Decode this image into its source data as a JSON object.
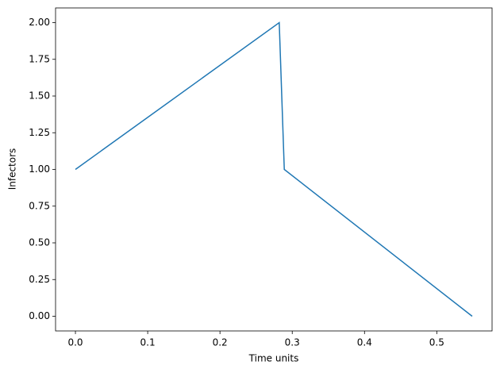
{
  "chart_data": {
    "type": "line",
    "x_label": "Time units",
    "y_label": "Infectors",
    "x": [
      0,
      0.282,
      0.289,
      0.549
    ],
    "series": [
      {
        "name": "Infectors",
        "color": "#1f77b4",
        "values": [
          1,
          2,
          1,
          0
        ]
      }
    ],
    "xlim": [
      -0.0275,
      0.5765
    ],
    "ylim": [
      -0.1,
      2.1
    ],
    "xticks": [
      {
        "value": 0,
        "label": "0.0"
      },
      0.1,
      0.2,
      0.3,
      0.4,
      0.5
    ],
    "yticks": [
      {
        "value": 0,
        "label": "0.00"
      },
      0.25,
      {
        "value": 0.5,
        "label": "0.50"
      },
      0.75,
      {
        "value": 1,
        "label": "1.00"
      },
      1.25,
      {
        "value": 1.5,
        "label": "1.50"
      },
      1.75,
      {
        "value": 2,
        "label": "2.00"
      }
    ]
  }
}
